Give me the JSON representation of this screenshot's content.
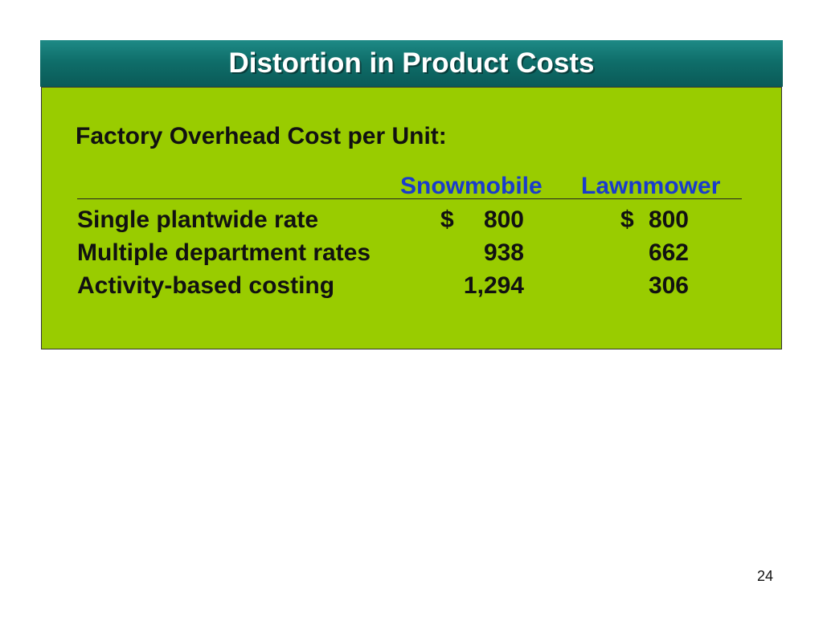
{
  "slide": {
    "title": "Distortion in Product Costs",
    "subtitle": "Factory Overhead Cost per Unit:",
    "columns": [
      "Snowmobile",
      "Lawnmower"
    ],
    "rows": [
      {
        "label": "Single plantwide rate",
        "currency1": "$",
        "snowmobile": "800",
        "currency2": "$",
        "lawnmower": "800"
      },
      {
        "label": "Multiple department rates",
        "currency1": "",
        "snowmobile": "938",
        "currency2": "",
        "lawnmower": "662"
      },
      {
        "label": "Activity-based costing",
        "currency1": "",
        "snowmobile": "1,294",
        "currency2": "",
        "lawnmower": "306"
      }
    ],
    "page_number": "24"
  },
  "colors": {
    "title_bar": "#0f6e6a",
    "content_background": "#99cc00",
    "column_header": "#1a3ccc",
    "title_text": "#ffffff"
  }
}
